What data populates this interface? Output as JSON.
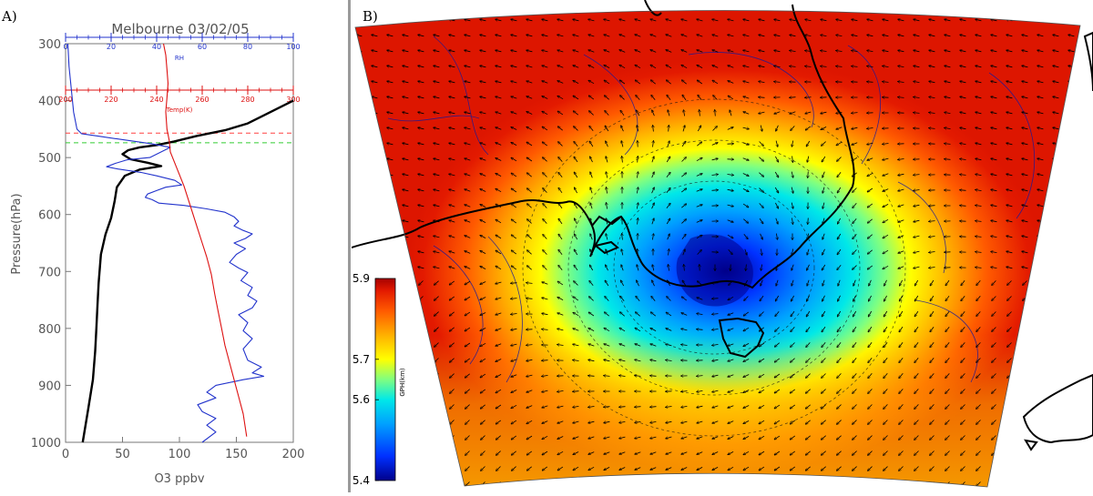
{
  "panelA": {
    "label": "A)",
    "title": "Melbourne 03/02/05",
    "chart_data": {
      "type": "line",
      "ylabel": "Pressure(hPa)",
      "xlabel": "O3 ppbv",
      "x_ticks": [
        0,
        50,
        100,
        150,
        200
      ],
      "xlim": [
        0,
        200
      ],
      "y_ticks": [
        300,
        400,
        500,
        600,
        700,
        800,
        900,
        1000
      ],
      "ylim": [
        300,
        1000
      ],
      "rh_axis": {
        "label": "RH",
        "ticks": [
          0,
          20,
          40,
          60,
          80,
          100
        ],
        "range": [
          0,
          100
        ],
        "color": "#2233cc"
      },
      "temp_axis": {
        "label": "Temp(K)",
        "ticks": [
          200,
          220,
          240,
          260,
          280,
          300
        ],
        "range": [
          200,
          300
        ],
        "color": "#dd1111"
      },
      "reference_lines": [
        {
          "pressure": 457,
          "color": "#ff4040"
        },
        {
          "pressure": 474,
          "color": "#33cc33"
        }
      ],
      "series": [
        {
          "key": "o3",
          "color": "#000000",
          "points": [
            [
              200,
              400
            ],
            [
              190,
              410
            ],
            [
              175,
              425
            ],
            [
              160,
              440
            ],
            [
              140,
              452
            ],
            [
              115,
              462
            ],
            [
              95,
              472
            ],
            [
              80,
              478
            ],
            [
              65,
              482
            ],
            [
              55,
              487
            ],
            [
              50,
              494
            ],
            [
              57,
              503
            ],
            [
              72,
              509
            ],
            [
              84,
              515
            ],
            [
              65,
              521
            ],
            [
              52,
              532
            ],
            [
              45,
              552
            ],
            [
              43,
              577
            ],
            [
              40,
              606
            ],
            [
              35,
              635
            ],
            [
              31,
              670
            ],
            [
              29,
              720
            ],
            [
              28,
              760
            ],
            [
              27,
              800
            ],
            [
              26,
              840
            ],
            [
              24,
              890
            ],
            [
              20,
              940
            ],
            [
              15,
              1000
            ]
          ]
        },
        {
          "key": "rh",
          "color": "#2233cc",
          "axis": "rh",
          "points": [
            [
              1,
              300
            ],
            [
              1.5,
              340
            ],
            [
              2.5,
              380
            ],
            [
              3.5,
              420
            ],
            [
              5,
              450
            ],
            [
              7,
              458
            ],
            [
              14,
              462
            ],
            [
              24,
              468
            ],
            [
              31,
              472
            ],
            [
              38,
              476
            ],
            [
              46,
              482
            ],
            [
              43,
              488
            ],
            [
              40,
              494
            ],
            [
              37,
              500
            ],
            [
              27,
              504
            ],
            [
              22,
              510
            ],
            [
              18,
              516
            ],
            [
              23,
              520
            ],
            [
              33,
              526
            ],
            [
              40,
              532
            ],
            [
              48,
              540
            ],
            [
              51,
              548
            ],
            [
              44,
              552
            ],
            [
              40,
              558
            ],
            [
              36,
              564
            ],
            [
              35,
              570
            ],
            [
              38,
              574
            ],
            [
              41,
              580
            ],
            [
              52,
              584
            ],
            [
              62,
              590
            ],
            [
              70,
              596
            ],
            [
              74,
              604
            ],
            [
              76,
              612
            ],
            [
              74,
              620
            ],
            [
              78,
              628
            ],
            [
              82,
              634
            ],
            [
              79,
              642
            ],
            [
              74,
              650
            ],
            [
              79,
              660
            ],
            [
              75,
              670
            ],
            [
              72,
              684
            ],
            [
              76,
              694
            ],
            [
              80,
              702
            ],
            [
              77,
              716
            ],
            [
              82,
              728
            ],
            [
              80,
              742
            ],
            [
              84,
              752
            ],
            [
              82,
              764
            ],
            [
              76,
              776
            ],
            [
              80,
              790
            ],
            [
              78,
              804
            ],
            [
              82,
              818
            ],
            [
              78,
              836
            ],
            [
              80,
              856
            ],
            [
              86,
              868
            ],
            [
              82,
              878
            ],
            [
              87,
              884
            ],
            [
              78,
              890
            ],
            [
              66,
              900
            ],
            [
              62,
              912
            ],
            [
              66,
              922
            ],
            [
              58,
              934
            ],
            [
              60,
              946
            ],
            [
              66,
              958
            ],
            [
              62,
              970
            ],
            [
              66,
              982
            ],
            [
              60,
              1000
            ]
          ]
        },
        {
          "key": "temp",
          "color": "#dd1111",
          "axis": "temp",
          "points": [
            [
              243,
              300
            ],
            [
              244,
              320
            ],
            [
              244.5,
              345
            ],
            [
              245,
              370
            ],
            [
              244.5,
              395
            ],
            [
              244,
              420
            ],
            [
              244.5,
              450
            ],
            [
              245.5,
              470
            ],
            [
              246,
              490
            ],
            [
              248,
              510
            ],
            [
              250,
              530
            ],
            [
              252,
              550
            ],
            [
              254,
              575
            ],
            [
              256,
              600
            ],
            [
              258,
              625
            ],
            [
              260,
              650
            ],
            [
              262,
              675
            ],
            [
              264,
              705
            ],
            [
              265.5,
              740
            ],
            [
              267,
              770
            ],
            [
              268.5,
              800
            ],
            [
              270,
              830
            ],
            [
              272,
              860
            ],
            [
              274,
              890
            ],
            [
              276,
              920
            ],
            [
              278,
              950
            ],
            [
              279.5,
              990
            ]
          ]
        }
      ]
    }
  },
  "panelB": {
    "label": "B)",
    "colorbar": {
      "label": "GPH(km)",
      "ticks": [
        "5.9",
        "5.7",
        "5.6",
        "5.4"
      ],
      "min": 5.4,
      "max": 5.9,
      "colors": [
        "#00008b",
        "#0030ff",
        "#00a0ff",
        "#00e8e8",
        "#80ff80",
        "#ffff00",
        "#ffb000",
        "#ff5a00",
        "#e31a00",
        "#a50000"
      ]
    }
  }
}
